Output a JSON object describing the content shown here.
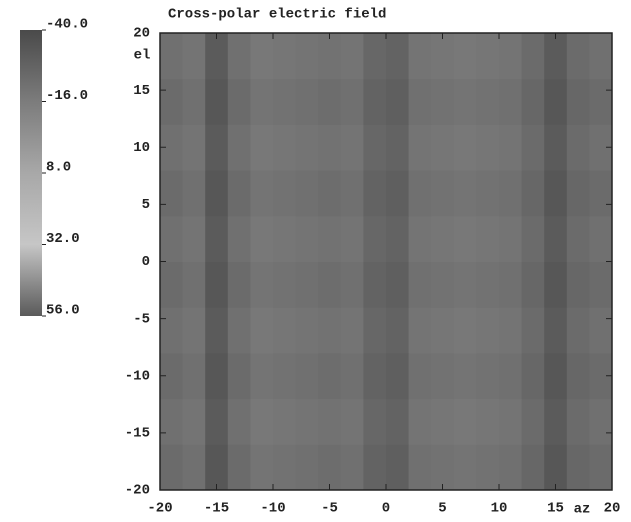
{
  "chart_data": {
    "type": "heatmap",
    "title": "Cross-polar electric field",
    "xlabel": "az",
    "ylabel": "el",
    "xlim": [
      -20,
      20
    ],
    "ylim": [
      -20,
      20
    ],
    "xticks": [
      -20,
      -15,
      -10,
      -5,
      0,
      5,
      10,
      15,
      20
    ],
    "yticks": [
      -20,
      -15,
      -10,
      -5,
      0,
      5,
      10,
      15,
      20
    ],
    "x": [
      -19,
      -17,
      -15,
      -13,
      -11,
      -9,
      -7,
      -5,
      -3,
      -1,
      1,
      3,
      5,
      7,
      9,
      11,
      13,
      15,
      17,
      19
    ],
    "y": [
      -18,
      -14,
      -10,
      -6,
      -2,
      2,
      6,
      10,
      14,
      18
    ],
    "z": [
      [
        -24,
        -22,
        -34,
        -24,
        -20,
        -21,
        -22,
        -23,
        -22,
        -28,
        -30,
        -22,
        -21,
        -20,
        -21,
        -22,
        -26,
        -34,
        -26,
        -24
      ],
      [
        -22,
        -20,
        -32,
        -22,
        -18,
        -19,
        -20,
        -21,
        -20,
        -26,
        -28,
        -20,
        -19,
        -18,
        -19,
        -20,
        -24,
        -32,
        -24,
        -22
      ],
      [
        -24,
        -22,
        -34,
        -24,
        -20,
        -21,
        -22,
        -23,
        -22,
        -28,
        -30,
        -22,
        -21,
        -20,
        -21,
        -22,
        -26,
        -34,
        -26,
        -24
      ],
      [
        -22,
        -20,
        -32,
        -22,
        -18,
        -19,
        -20,
        -21,
        -20,
        -26,
        -28,
        -20,
        -19,
        -18,
        -19,
        -20,
        -24,
        -32,
        -24,
        -22
      ],
      [
        -24,
        -22,
        -34,
        -24,
        -20,
        -21,
        -22,
        -23,
        -22,
        -28,
        -30,
        -22,
        -21,
        -20,
        -21,
        -22,
        -26,
        -34,
        -26,
        -24
      ],
      [
        -22,
        -20,
        -32,
        -22,
        -18,
        -19,
        -20,
        -21,
        -20,
        -26,
        -28,
        -20,
        -19,
        -18,
        -19,
        -20,
        -24,
        -32,
        -24,
        -22
      ],
      [
        -24,
        -22,
        -34,
        -24,
        -20,
        -21,
        -22,
        -23,
        -22,
        -28,
        -30,
        -22,
        -21,
        -20,
        -21,
        -22,
        -26,
        -34,
        -26,
        -24
      ],
      [
        -22,
        -20,
        -32,
        -22,
        -18,
        -19,
        -20,
        -21,
        -20,
        -26,
        -28,
        -20,
        -19,
        -18,
        -19,
        -20,
        -24,
        -32,
        -24,
        -22
      ],
      [
        -24,
        -22,
        -34,
        -24,
        -20,
        -21,
        -22,
        -23,
        -22,
        -28,
        -30,
        -22,
        -21,
        -20,
        -21,
        -22,
        -26,
        -34,
        -26,
        -24
      ],
      [
        -22,
        -20,
        -32,
        -22,
        -18,
        -19,
        -20,
        -21,
        -20,
        -26,
        -28,
        -20,
        -19,
        -18,
        -19,
        -20,
        -24,
        -32,
        -24,
        -22
      ]
    ],
    "colorbar": {
      "lim": [
        -40,
        56
      ],
      "ticks": [
        {
          "value": -40,
          "label": "-40.0"
        },
        {
          "value": -16,
          "label": "-16.0"
        },
        {
          "value": 8,
          "label": "8.0"
        },
        {
          "value": 32,
          "label": "32.0"
        },
        {
          "value": 56,
          "label": "56.0"
        }
      ],
      "colors": [
        "#4a4a4a",
        "#7c7c7c",
        "#a8a8a8",
        "#c6c6c6",
        "#5a5a5a"
      ]
    }
  }
}
